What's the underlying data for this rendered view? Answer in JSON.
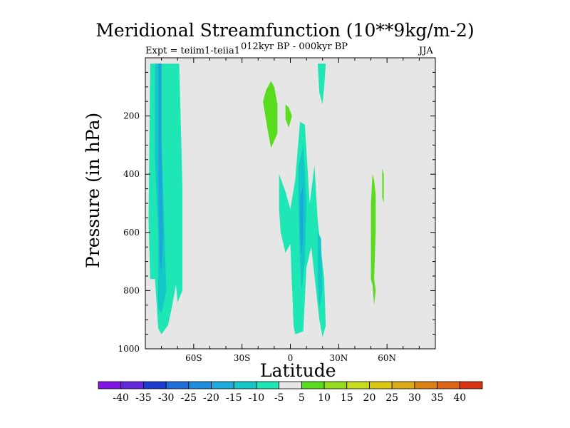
{
  "chart_data": {
    "type": "contour",
    "title": "Meridional Streamfunction (10**9kg/m-2)",
    "left_string": "Expt = teiim1-teiia1",
    "center_string": "012kyr BP - 000kyr BP",
    "right_string": "JJA",
    "xlabel": "Latitude",
    "ylabel": "Pressure (in hPa)",
    "xlim": [
      -90,
      90
    ],
    "ylim": [
      1000,
      0
    ],
    "x_ticks": [
      {
        "value": -60,
        "label": "60S"
      },
      {
        "value": -30,
        "label": "30S"
      },
      {
        "value": 0,
        "label": "0"
      },
      {
        "value": 30,
        "label": "30N"
      },
      {
        "value": 60,
        "label": "60N"
      }
    ],
    "y_ticks": [
      {
        "value": 200,
        "label": "200"
      },
      {
        "value": 400,
        "label": "400"
      },
      {
        "value": 600,
        "label": "600"
      },
      {
        "value": 800,
        "label": "800"
      },
      {
        "value": 1000,
        "label": "1000"
      }
    ],
    "background_color": "#e6e6e6",
    "regions": [
      {
        "level": -5,
        "color": "#1ee6b4",
        "points": [
          [
            -87,
            20
          ],
          [
            -83,
            20
          ],
          [
            -80,
            20
          ],
          [
            -77,
            20
          ],
          [
            -69,
            20
          ],
          [
            -68,
            220
          ],
          [
            -67,
            440
          ],
          [
            -67,
            800
          ],
          [
            -70,
            840
          ],
          [
            -71,
            780
          ],
          [
            -74,
            870
          ],
          [
            -76,
            920
          ],
          [
            -80,
            950
          ],
          [
            -82,
            930
          ],
          [
            -84,
            760
          ],
          [
            -87,
            760
          ],
          [
            -88,
            560
          ]
        ]
      },
      {
        "level": -10,
        "color": "#14c8c8",
        "points": [
          [
            -84,
            20
          ],
          [
            -80,
            20
          ],
          [
            -80,
            260
          ],
          [
            -78,
            620
          ],
          [
            -77,
            800
          ],
          [
            -80,
            880
          ],
          [
            -82,
            860
          ],
          [
            -82,
            600
          ],
          [
            -84,
            350
          ]
        ]
      },
      {
        "level": -15,
        "color": "#1ea5dc",
        "points": [
          [
            -82,
            20
          ],
          [
            -80,
            20
          ],
          [
            -80,
            300
          ],
          [
            -79,
            600
          ],
          [
            -80,
            740
          ],
          [
            -81,
            700
          ],
          [
            -82,
            400
          ]
        ]
      },
      {
        "level": -5,
        "color": "#1ee6b4",
        "points": [
          [
            -7,
            400
          ],
          [
            -3,
            460
          ],
          [
            0,
            520
          ],
          [
            3,
            420
          ],
          [
            6,
            220
          ],
          [
            9,
            230
          ],
          [
            12,
            500
          ],
          [
            15,
            370
          ],
          [
            17,
            560
          ],
          [
            21,
            760
          ],
          [
            22,
            920
          ],
          [
            20,
            960
          ],
          [
            18,
            900
          ],
          [
            16,
            800
          ],
          [
            13,
            650
          ],
          [
            10,
            720
          ],
          [
            8,
            940
          ],
          [
            3,
            950
          ],
          [
            2,
            920
          ],
          [
            0,
            640
          ],
          [
            -3,
            670
          ],
          [
            -6,
            600
          ],
          [
            -7,
            520
          ]
        ]
      },
      {
        "level": -5,
        "color": "#1ee6b4",
        "points": [
          [
            17,
            20
          ],
          [
            22,
            20
          ],
          [
            21,
            100
          ],
          [
            20,
            160
          ],
          [
            18,
            120
          ]
        ]
      },
      {
        "level": -10,
        "color": "#14c8c8",
        "points": [
          [
            5,
            380
          ],
          [
            8,
            300
          ],
          [
            10,
            500
          ],
          [
            9,
            700
          ],
          [
            7,
            800
          ],
          [
            6,
            700
          ],
          [
            5,
            500
          ]
        ]
      },
      {
        "level": -15,
        "color": "#1ea5dc",
        "points": [
          [
            6,
            480
          ],
          [
            8,
            440
          ],
          [
            8,
            620
          ],
          [
            7,
            680
          ],
          [
            6,
            600
          ]
        ]
      },
      {
        "level": -10,
        "color": "#14c8c8",
        "points": [
          [
            17,
            600
          ],
          [
            19,
            620
          ],
          [
            20,
            800
          ],
          [
            18,
            860
          ],
          [
            17,
            760
          ]
        ]
      },
      {
        "level": 5,
        "color": "#5adc1e",
        "points": [
          [
            -12,
            80
          ],
          [
            -10,
            100
          ],
          [
            -8,
            160
          ],
          [
            -8,
            260
          ],
          [
            -12,
            310
          ],
          [
            -14,
            250
          ],
          [
            -17,
            150
          ],
          [
            -15,
            110
          ]
        ]
      },
      {
        "level": 5,
        "color": "#5adc1e",
        "points": [
          [
            -3,
            160
          ],
          [
            -1,
            170
          ],
          [
            1,
            200
          ],
          [
            -1,
            240
          ],
          [
            -3,
            210
          ]
        ]
      },
      {
        "level": 5,
        "color": "#5adc1e",
        "points": [
          [
            51,
            400
          ],
          [
            52,
            420
          ],
          [
            53,
            470
          ],
          [
            53,
            600
          ],
          [
            52,
            760
          ],
          [
            53,
            800
          ],
          [
            52,
            850
          ],
          [
            51,
            780
          ],
          [
            50,
            760
          ],
          [
            50,
            500
          ]
        ]
      },
      {
        "level": 5,
        "color": "#5adc1e",
        "points": [
          [
            57,
            380
          ],
          [
            58,
            400
          ],
          [
            58,
            500
          ],
          [
            57,
            480
          ]
        ]
      }
    ],
    "colorbar": {
      "levels": [
        "-40",
        "-35",
        "-30",
        "-25",
        "-20",
        "-15",
        "-10",
        "-5",
        "5",
        "10",
        "15",
        "20",
        "25",
        "30",
        "35",
        "40"
      ],
      "colors": [
        "#8214e6",
        "#6428dc",
        "#1e3cd2",
        "#1e6edc",
        "#1e8cdc",
        "#1eaadc",
        "#14c8c8",
        "#1ee6b4",
        "#e6e6e6",
        "#5adc1e",
        "#96dc1e",
        "#c8dc1e",
        "#dcc814",
        "#dcaa14",
        "#dc8214",
        "#dc6414",
        "#dc3214"
      ]
    }
  }
}
